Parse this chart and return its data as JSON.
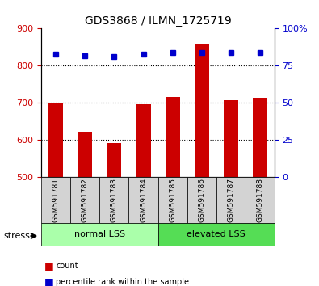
{
  "title": "GDS3868 / ILMN_1725719",
  "samples": [
    "GSM591781",
    "GSM591782",
    "GSM591783",
    "GSM591784",
    "GSM591785",
    "GSM591786",
    "GSM591787",
    "GSM591788"
  ],
  "counts": [
    700,
    623,
    592,
    697,
    717,
    858,
    708,
    714
  ],
  "percentile_ranks": [
    83,
    82,
    81,
    83,
    84,
    84,
    84,
    84
  ],
  "ylim_left": [
    500,
    900
  ],
  "ylim_right": [
    0,
    100
  ],
  "yticks_left": [
    500,
    600,
    700,
    800,
    900
  ],
  "yticks_right": [
    0,
    25,
    50,
    75,
    100
  ],
  "grid_values": [
    600,
    700,
    800
  ],
  "bar_color": "#cc0000",
  "dot_color": "#0000cc",
  "bar_width": 0.5,
  "group_labels": [
    "normal LSS",
    "elevated LSS"
  ],
  "group_ranges": [
    [
      0,
      4
    ],
    [
      4,
      8
    ]
  ],
  "group_colors": [
    "#aaffaa",
    "#55dd55"
  ],
  "stress_label": "stress",
  "legend_items": [
    {
      "color": "#cc0000",
      "label": "count"
    },
    {
      "color": "#0000cc",
      "label": "percentile rank within the sample"
    }
  ],
  "axis_label_color_left": "#cc0000",
  "axis_label_color_right": "#0000cc",
  "xlabel_color_left": "#cc0000",
  "xlabel_color_right": "#0000cc"
}
